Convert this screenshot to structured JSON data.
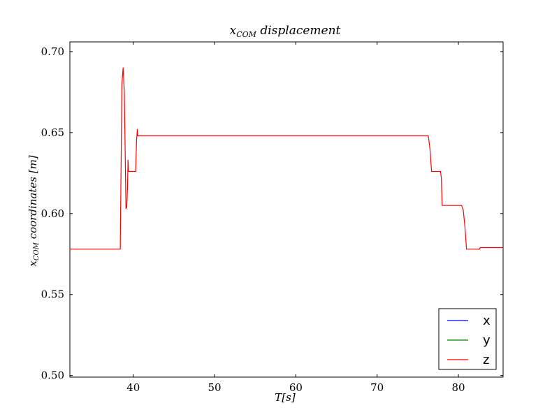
{
  "chart_data": {
    "type": "line",
    "title": "x_COM displacement",
    "title_main": "x",
    "title_sub": "COM",
    "title_rest": " displacement",
    "xlabel": "T[s]",
    "ylabel": "x_COM coordinates [m]",
    "ylabel_main": "x",
    "ylabel_sub": "COM",
    "ylabel_rest": " coordinates [m]",
    "xlim": [
      32.2,
      85.5
    ],
    "ylim": [
      0.499,
      0.706
    ],
    "xticks": [
      40,
      50,
      60,
      70,
      80
    ],
    "yticks": [
      0.5,
      0.55,
      0.6,
      0.65,
      0.7
    ],
    "xtick_labels": [
      "40",
      "50",
      "60",
      "70",
      "80"
    ],
    "ytick_labels": [
      "0.50",
      "0.55",
      "0.60",
      "0.65",
      "0.70"
    ],
    "grid": false,
    "legend_position": "lower-right",
    "series": [
      {
        "name": "x",
        "color": "#0000ff",
        "points": []
      },
      {
        "name": "y",
        "color": "#008000",
        "points": []
      },
      {
        "name": "z",
        "color": "#ff0000",
        "points": [
          [
            32.2,
            0.578
          ],
          [
            38.4,
            0.578
          ],
          [
            38.6,
            0.68
          ],
          [
            38.75,
            0.69
          ],
          [
            38.9,
            0.675
          ],
          [
            39.0,
            0.64
          ],
          [
            39.1,
            0.603
          ],
          [
            39.2,
            0.604
          ],
          [
            39.3,
            0.618
          ],
          [
            39.35,
            0.633
          ],
          [
            39.42,
            0.626
          ],
          [
            40.3,
            0.626
          ],
          [
            40.4,
            0.645
          ],
          [
            40.5,
            0.652
          ],
          [
            40.55,
            0.648
          ],
          [
            76.3,
            0.648
          ],
          [
            76.5,
            0.64
          ],
          [
            76.7,
            0.626
          ],
          [
            77.8,
            0.626
          ],
          [
            77.9,
            0.622
          ],
          [
            78.0,
            0.605
          ],
          [
            80.4,
            0.605
          ],
          [
            80.6,
            0.602
          ],
          [
            80.8,
            0.592
          ],
          [
            81.0,
            0.578
          ],
          [
            82.6,
            0.578
          ],
          [
            82.7,
            0.579
          ],
          [
            85.5,
            0.579
          ]
        ]
      }
    ]
  }
}
